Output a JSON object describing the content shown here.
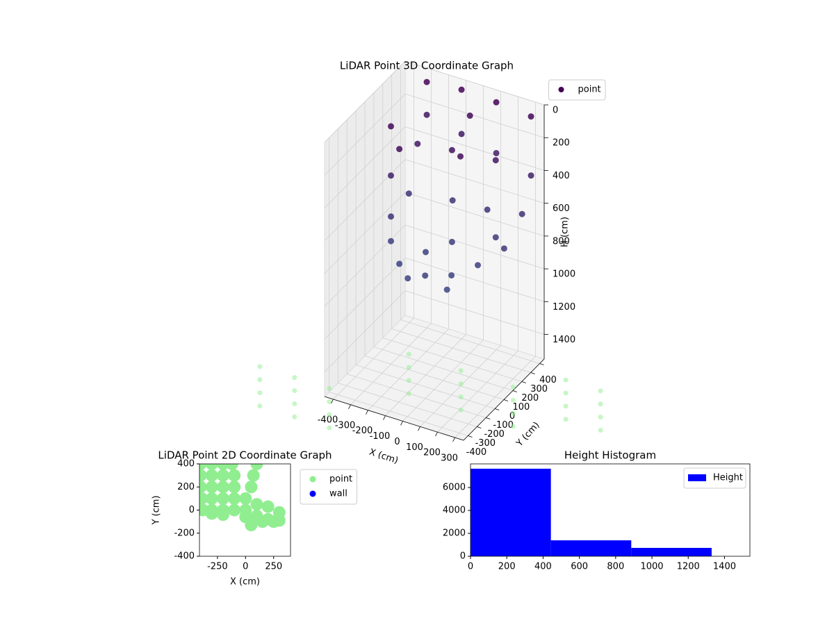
{
  "chart_data": [
    {
      "type": "scatter3d",
      "title": "LiDAR Point 3D Coordinate Graph",
      "x_label": "X (cm)",
      "y_label": "Y (cm)",
      "z_label": "H (cm)",
      "xlim": [
        -450,
        350
      ],
      "ylim": [
        -450,
        450
      ],
      "zlim": [
        0,
        1550
      ],
      "z_inverted": true,
      "xticks": [
        -400,
        -300,
        -200,
        -100,
        0,
        100,
        200,
        300
      ],
      "yticks": [
        -400,
        -300,
        -200,
        -100,
        0,
        100,
        200,
        300,
        400
      ],
      "zticks": [
        0,
        200,
        400,
        600,
        800,
        1000,
        1200,
        1400
      ],
      "grid": true,
      "legend": "upper right",
      "series": [
        {
          "name": "point",
          "colormap": [
            "#440154",
            "#3b528b"
          ],
          "x": [
            -300,
            -300,
            -100,
            -100,
            100,
            100,
            300,
            300,
            -300,
            -300,
            -200,
            0,
            100,
            200,
            -250,
            0,
            -300,
            -300,
            -200,
            -100,
            0,
            100,
            200,
            300,
            300,
            100,
            -100,
            -300,
            0,
            -100,
            200,
            100
          ],
          "y": [
            400,
            400,
            400,
            400,
            400,
            400,
            400,
            400,
            0,
            0,
            -100,
            100,
            0,
            200,
            200,
            300,
            0,
            0,
            -100,
            -200,
            -200,
            -100,
            0,
            100,
            300,
            300,
            300,
            200,
            100,
            0,
            200,
            -150
          ],
          "z": [
            50,
            250,
            30,
            300,
            40,
            350,
            60,
            420,
            100,
            400,
            150,
            200,
            150,
            250,
            300,
            100,
            650,
            800,
            850,
            850,
            800,
            820,
            780,
            700,
            600,
            640,
            650,
            620,
            760,
            800,
            720,
            880
          ]
        },
        {
          "color": "#90ee90",
          "x": [
            -900,
            -900,
            -900,
            -900,
            -700,
            -700,
            -700,
            -700,
            -500,
            -500,
            -500,
            -500,
            -300,
            -300,
            -300,
            -300,
            0,
            0,
            0,
            0,
            300,
            300,
            300,
            300,
            500,
            500,
            500,
            500,
            700,
            700,
            700,
            700
          ],
          "y": [
            -300,
            -300,
            -300,
            -300,
            -300,
            -300,
            -300,
            -300,
            -300,
            -300,
            -300,
            -300,
            200,
            200,
            200,
            200,
            200,
            200,
            200,
            200,
            200,
            200,
            200,
            200,
            400,
            400,
            400,
            400,
            400,
            400,
            400,
            400
          ],
          "z": [
            1600,
            1680,
            1760,
            1840,
            1600,
            1680,
            1760,
            1840,
            1600,
            1680,
            1760,
            1840,
            1600,
            1680,
            1760,
            1840,
            1600,
            1680,
            1760,
            1840,
            1600,
            1680,
            1760,
            1840,
            1600,
            1680,
            1760,
            1840,
            1600,
            1680,
            1760,
            1840
          ]
        }
      ]
    },
    {
      "type": "scatter",
      "title": "LiDAR Point 2D Coordinate Graph",
      "x_label": "X (cm)",
      "y_label": "Y (cm)",
      "xlim": [
        -410,
        400
      ],
      "ylim": [
        -400,
        400
      ],
      "xticks": [
        -250,
        0,
        250
      ],
      "yticks": [
        -400,
        -200,
        0,
        200,
        400
      ],
      "legend": "outside right",
      "series": [
        {
          "name": "point",
          "color": "#90ee90",
          "x": [
            -400,
            -300,
            -200,
            -120,
            -400,
            -300,
            -200,
            -100,
            -400,
            -300,
            -200,
            -100,
            -390,
            -300,
            -200,
            -100,
            0,
            -380,
            -300,
            -200,
            -100,
            0,
            100,
            200,
            300,
            100,
            200,
            300,
            0,
            50,
            150,
            250,
            -300,
            -200,
            100,
            70,
            50
          ],
          "y": [
            400,
            400,
            400,
            400,
            300,
            300,
            300,
            300,
            200,
            200,
            200,
            200,
            100,
            100,
            100,
            100,
            100,
            0,
            0,
            0,
            0,
            0,
            50,
            30,
            -20,
            -50,
            -80,
            -90,
            -60,
            -130,
            -100,
            -100,
            -30,
            -40,
            400,
            300,
            200
          ]
        },
        {
          "name": "wall",
          "color": "#0000ff",
          "x": [],
          "y": []
        }
      ]
    },
    {
      "type": "histogram",
      "title": "Height Histogram",
      "name": "Height",
      "color": "#0000ff",
      "bins": [
        0,
        443,
        886,
        1329
      ],
      "values": [
        7640,
        1390,
        730
      ],
      "xlim": [
        0,
        1540
      ],
      "ylim": [
        0,
        8060
      ],
      "xticks": [
        0,
        200,
        400,
        600,
        800,
        1000,
        1200,
        1400
      ],
      "yticks": [
        0,
        2000,
        4000,
        6000
      ],
      "legend": "upper right"
    }
  ]
}
